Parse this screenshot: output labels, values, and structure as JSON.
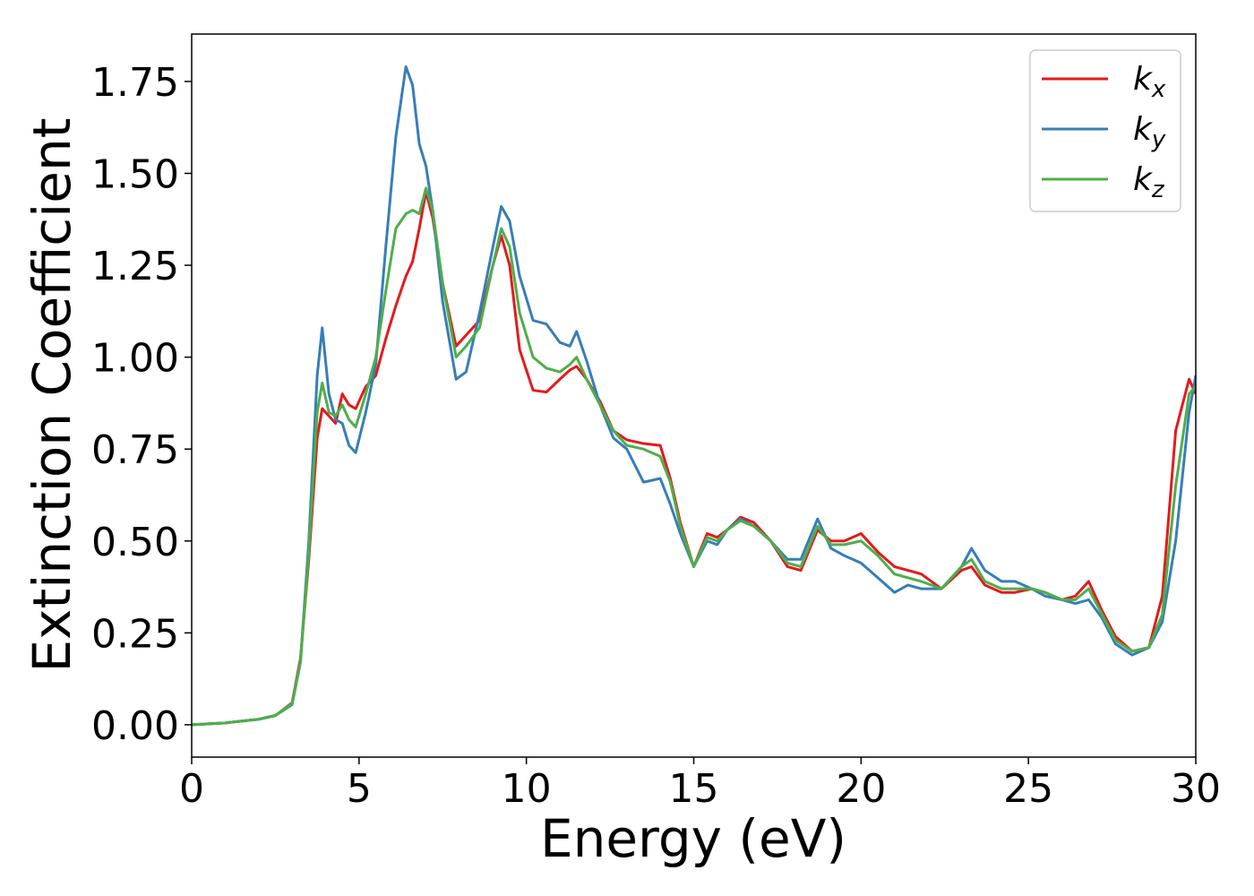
{
  "chart_data": {
    "type": "line",
    "xlabel": "Energy (eV)",
    "ylabel": "Extinction Coefficient",
    "x": [
      0,
      1,
      2,
      2.5,
      3,
      3.25,
      3.5,
      3.75,
      3.9,
      4.1,
      4.3,
      4.5,
      4.7,
      4.9,
      5.2,
      5.5,
      5.8,
      6.1,
      6.4,
      6.6,
      6.8,
      7.0,
      7.2,
      7.5,
      7.9,
      8.2,
      8.6,
      9.0,
      9.25,
      9.5,
      9.8,
      10.2,
      10.6,
      11.0,
      11.3,
      11.5,
      11.8,
      12.2,
      12.6,
      13.0,
      13.5,
      14.0,
      14.3,
      14.6,
      15.0,
      15.4,
      15.7,
      16.0,
      16.4,
      16.8,
      17.3,
      17.8,
      18.2,
      18.7,
      19.1,
      19.5,
      20.0,
      20.5,
      21.0,
      21.4,
      21.8,
      22.4,
      23.0,
      23.3,
      23.7,
      24.2,
      24.6,
      25.1,
      25.5,
      26.0,
      26.4,
      26.8,
      27.2,
      27.6,
      28.1,
      28.6,
      29.0,
      29.4,
      29.8,
      30
    ],
    "series": [
      {
        "name": "kx",
        "color": "#e41a1c",
        "values": [
          0,
          0.005,
          0.015,
          0.025,
          0.06,
          0.18,
          0.45,
          0.78,
          0.86,
          0.84,
          0.82,
          0.9,
          0.87,
          0.86,
          0.92,
          0.95,
          1.05,
          1.14,
          1.22,
          1.26,
          1.35,
          1.45,
          1.38,
          1.2,
          1.03,
          1.06,
          1.1,
          1.25,
          1.33,
          1.25,
          1.02,
          0.91,
          0.905,
          0.94,
          0.965,
          0.975,
          0.94,
          0.88,
          0.8,
          0.775,
          0.765,
          0.76,
          0.67,
          0.55,
          0.43,
          0.52,
          0.51,
          0.53,
          0.565,
          0.55,
          0.5,
          0.43,
          0.42,
          0.53,
          0.5,
          0.5,
          0.52,
          0.47,
          0.43,
          0.42,
          0.41,
          0.37,
          0.42,
          0.43,
          0.38,
          0.36,
          0.36,
          0.37,
          0.36,
          0.34,
          0.35,
          0.39,
          0.31,
          0.24,
          0.2,
          0.21,
          0.35,
          0.8,
          0.94,
          0.9
        ]
      },
      {
        "name": "ky",
        "color": "#377eb8",
        "values": [
          0,
          0.005,
          0.015,
          0.025,
          0.055,
          0.17,
          0.5,
          0.95,
          1.08,
          0.9,
          0.83,
          0.82,
          0.76,
          0.74,
          0.85,
          0.98,
          1.3,
          1.6,
          1.79,
          1.74,
          1.58,
          1.52,
          1.4,
          1.15,
          0.94,
          0.96,
          1.12,
          1.3,
          1.41,
          1.37,
          1.22,
          1.1,
          1.09,
          1.04,
          1.03,
          1.07,
          0.99,
          0.87,
          0.78,
          0.75,
          0.66,
          0.67,
          0.6,
          0.52,
          0.43,
          0.5,
          0.49,
          0.53,
          0.56,
          0.54,
          0.5,
          0.45,
          0.45,
          0.56,
          0.48,
          0.46,
          0.44,
          0.4,
          0.36,
          0.38,
          0.37,
          0.37,
          0.43,
          0.48,
          0.42,
          0.39,
          0.39,
          0.37,
          0.35,
          0.34,
          0.33,
          0.34,
          0.29,
          0.22,
          0.19,
          0.21,
          0.28,
          0.5,
          0.85,
          0.95
        ]
      },
      {
        "name": "kz",
        "color": "#4daf4a",
        "values": [
          0,
          0.005,
          0.015,
          0.025,
          0.058,
          0.17,
          0.47,
          0.85,
          0.93,
          0.85,
          0.84,
          0.87,
          0.83,
          0.81,
          0.9,
          1.0,
          1.18,
          1.35,
          1.39,
          1.4,
          1.39,
          1.46,
          1.4,
          1.2,
          1.0,
          1.03,
          1.08,
          1.25,
          1.35,
          1.3,
          1.12,
          1.0,
          0.97,
          0.96,
          0.98,
          1.0,
          0.94,
          0.87,
          0.8,
          0.76,
          0.75,
          0.73,
          0.66,
          0.54,
          0.43,
          0.51,
          0.5,
          0.53,
          0.555,
          0.54,
          0.5,
          0.44,
          0.43,
          0.54,
          0.49,
          0.49,
          0.5,
          0.46,
          0.41,
          0.4,
          0.39,
          0.37,
          0.43,
          0.45,
          0.39,
          0.37,
          0.37,
          0.37,
          0.36,
          0.34,
          0.34,
          0.37,
          0.3,
          0.23,
          0.2,
          0.21,
          0.3,
          0.65,
          0.9,
          0.92
        ]
      }
    ],
    "xlim": [
      0,
      30
    ],
    "xticks": [
      0,
      5,
      10,
      15,
      20,
      25,
      30
    ],
    "ylim": [
      -0.088,
      1.879
    ],
    "yticks": [
      {
        "value": 0,
        "label": "0.00"
      },
      {
        "value": 0.25,
        "label": "0.25"
      },
      {
        "value": 0.5,
        "label": "0.50"
      },
      {
        "value": 0.75,
        "label": "0.75"
      },
      {
        "value": 1,
        "label": "1.00"
      },
      {
        "value": 1.25,
        "label": "1.25"
      },
      {
        "value": 1.5,
        "label": "1.50"
      },
      {
        "value": 1.75,
        "label": "1.75"
      }
    ],
    "legend": "upper right",
    "grid": false
  }
}
